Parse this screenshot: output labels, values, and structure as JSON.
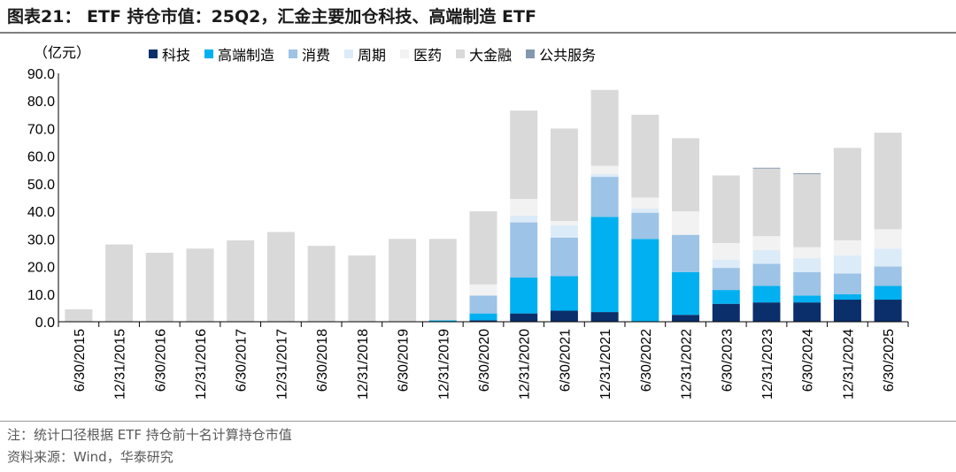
{
  "title": "图表21： ETF 持仓市值：25Q2，汇金主要加仓科技、高端制造 ETF",
  "unit_label": "（亿元）",
  "note": "注：统计口径根据 ETF 持仓前十名计算持仓市值",
  "source": "资料来源：Wind，华泰研究",
  "chart_data": {
    "type": "bar",
    "stacked": true,
    "categories": [
      "6/30/2015",
      "12/31/2015",
      "6/30/2016",
      "12/31/2016",
      "6/30/2017",
      "12/31/2017",
      "6/30/2018",
      "12/31/2018",
      "6/30/2019",
      "12/31/2019",
      "6/30/2020",
      "12/31/2020",
      "6/30/2021",
      "12/31/2021",
      "6/30/2022",
      "12/31/2022",
      "6/30/2023",
      "12/31/2023",
      "6/30/2024",
      "12/31/2024",
      "6/30/2025"
    ],
    "ylim": [
      0,
      90
    ],
    "yticks": [
      "0.0",
      "10.0",
      "20.0",
      "30.0",
      "40.0",
      "50.0",
      "60.0",
      "70.0",
      "80.0",
      "90.0"
    ],
    "legend_position": "top",
    "series": [
      {
        "name": "科技",
        "color": "#0b2f6b",
        "values": [
          0,
          0,
          0,
          0,
          0,
          0,
          0,
          0,
          0,
          0,
          0.5,
          3,
          4,
          3.5,
          0,
          2.5,
          6.5,
          7,
          7,
          8,
          8
        ]
      },
      {
        "name": "高端制造",
        "color": "#00b0f0",
        "values": [
          0,
          0,
          0,
          0,
          0,
          0,
          0,
          0,
          0,
          0.5,
          2.5,
          13,
          12.5,
          34.5,
          30,
          15.5,
          5,
          6,
          2.5,
          2,
          5
        ]
      },
      {
        "name": "消费",
        "color": "#9dc3e6",
        "values": [
          0,
          0,
          0,
          0,
          0,
          0,
          0,
          0,
          0,
          0,
          6.5,
          20,
          14,
          14.5,
          9.5,
          13.5,
          8,
          8,
          8.5,
          7.5,
          7
        ]
      },
      {
        "name": "周期",
        "color": "#dcebf8",
        "values": [
          0,
          0,
          0,
          0,
          0,
          0,
          0,
          0,
          0,
          0,
          0,
          2.5,
          4.5,
          1,
          1.5,
          0,
          3,
          5,
          5,
          6.5,
          6.5
        ]
      },
      {
        "name": "医药",
        "color": "#f2f2f2",
        "values": [
          0,
          0,
          0,
          0,
          0,
          0,
          0,
          0,
          0,
          0,
          4,
          6,
          1.5,
          3,
          4,
          8.5,
          6,
          5,
          4,
          5.5,
          7
        ]
      },
      {
        "name": "大金融",
        "color": "#d9d9d9",
        "values": [
          4.5,
          28,
          25,
          26.5,
          29.5,
          32.5,
          27.5,
          24,
          30,
          29.5,
          26.5,
          32,
          33.5,
          27.5,
          30,
          26.5,
          24.5,
          24.5,
          26.5,
          33.5,
          35
        ]
      },
      {
        "name": "公共服务",
        "color": "#8497b0",
        "values": [
          0,
          0,
          0,
          0,
          0,
          0,
          0,
          0,
          0,
          0,
          0,
          0,
          0,
          0,
          0,
          0,
          0,
          0.3,
          0.3,
          0,
          0
        ]
      }
    ]
  }
}
